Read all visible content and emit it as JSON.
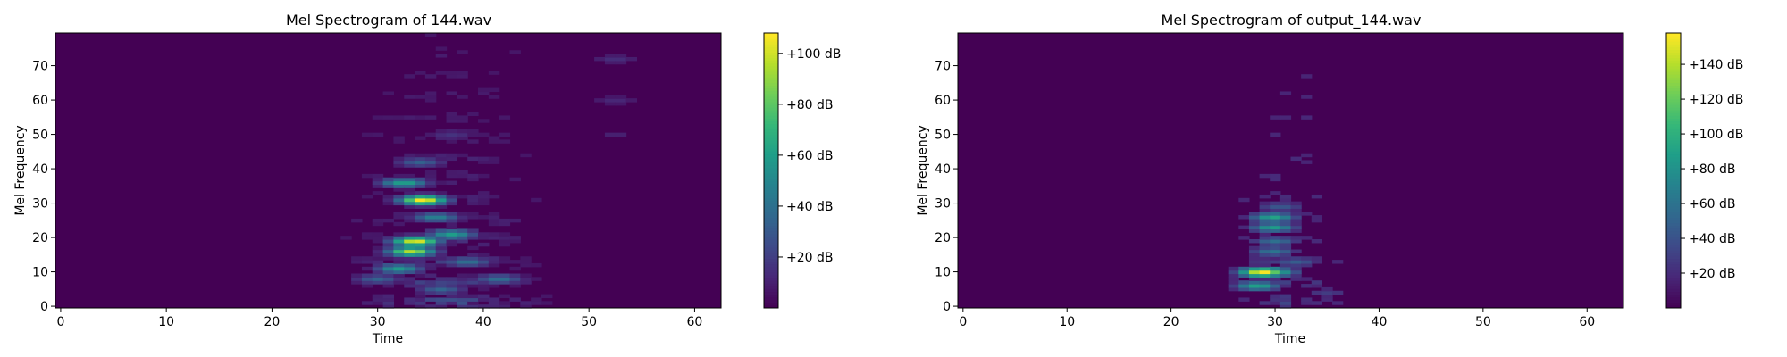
{
  "chart_data": [
    {
      "type": "heatmap",
      "title": "Mel Spectrogram of 144.wav",
      "xlabel": "Time",
      "ylabel": "Mel Frequency",
      "xlim": [
        -0.5,
        62.5
      ],
      "ylim": [
        -0.5,
        79.5
      ],
      "xticks": [
        0,
        10,
        20,
        30,
        40,
        50,
        60
      ],
      "yticks": [
        0,
        10,
        20,
        30,
        40,
        50,
        60,
        70
      ],
      "n_time": 63,
      "n_mels": 80,
      "colormap": "viridis",
      "colorbar": {
        "range": [
          0,
          108
        ],
        "ticks": [
          20,
          40,
          60,
          80,
          100
        ],
        "tick_labels": [
          "+20 dB",
          "+40 dB",
          "+60 dB",
          "+80 dB",
          "+100 dB"
        ]
      },
      "floor": 4,
      "speech_time_range": [
        27,
        46
      ],
      "blobs": [
        {
          "t": 34.3,
          "m": 31,
          "value": 108
        },
        {
          "t": 33.6,
          "m": 19,
          "value": 104
        },
        {
          "t": 33.2,
          "m": 16,
          "value": 96
        },
        {
          "t": 32.5,
          "m": 36,
          "value": 62
        },
        {
          "t": 32,
          "m": 11,
          "value": 58
        },
        {
          "t": 37,
          "m": 21,
          "value": 60
        },
        {
          "t": 35.5,
          "m": 26,
          "value": 48
        },
        {
          "t": 34,
          "m": 42,
          "value": 34
        },
        {
          "t": 38.5,
          "m": 13,
          "value": 40
        },
        {
          "t": 41.5,
          "m": 8,
          "value": 40
        },
        {
          "t": 36,
          "m": 5,
          "value": 35
        },
        {
          "t": 30,
          "m": 8,
          "value": 34
        },
        {
          "t": 37,
          "m": 50,
          "value": 16
        },
        {
          "t": 52.5,
          "m": 72,
          "value": 14
        },
        {
          "t": 52.5,
          "m": 60,
          "value": 12
        },
        {
          "t": 52.5,
          "m": 50,
          "value": 10
        }
      ]
    },
    {
      "type": "heatmap",
      "title": "Mel Spectrogram of output_144.wav",
      "xlabel": "Time",
      "ylabel": "Mel Frequency",
      "xlim": [
        -0.5,
        63.5
      ],
      "ylim": [
        -0.5,
        79.5
      ],
      "xticks": [
        0,
        10,
        20,
        30,
        40,
        50,
        60
      ],
      "yticks": [
        0,
        10,
        20,
        30,
        40,
        50,
        60,
        70
      ],
      "n_time": 64,
      "n_mels": 80,
      "colormap": "viridis",
      "colorbar": {
        "range": [
          0,
          158
        ],
        "ticks": [
          20,
          40,
          60,
          80,
          100,
          120,
          140
        ],
        "tick_labels": [
          "+20 dB",
          "+40 dB",
          "+60 dB",
          "+80 dB",
          "+100 dB",
          "+120 dB",
          "+140 dB"
        ]
      },
      "floor": 10,
      "speech_time_range": [
        26,
        36
      ],
      "blobs": [
        {
          "t": 28.8,
          "m": 10,
          "value": 158
        },
        {
          "t": 29.8,
          "m": 10,
          "value": 104
        },
        {
          "t": 28.3,
          "m": 6,
          "value": 90
        },
        {
          "t": 29.8,
          "m": 26,
          "value": 92
        },
        {
          "t": 29.8,
          "m": 23,
          "value": 88
        },
        {
          "t": 29.8,
          "m": 16,
          "value": 62
        },
        {
          "t": 30,
          "m": 19,
          "value": 58
        },
        {
          "t": 30.5,
          "m": 29,
          "value": 44
        },
        {
          "t": 32,
          "m": 13,
          "value": 46
        },
        {
          "t": 35,
          "m": 4,
          "value": 28
        }
      ]
    }
  ]
}
